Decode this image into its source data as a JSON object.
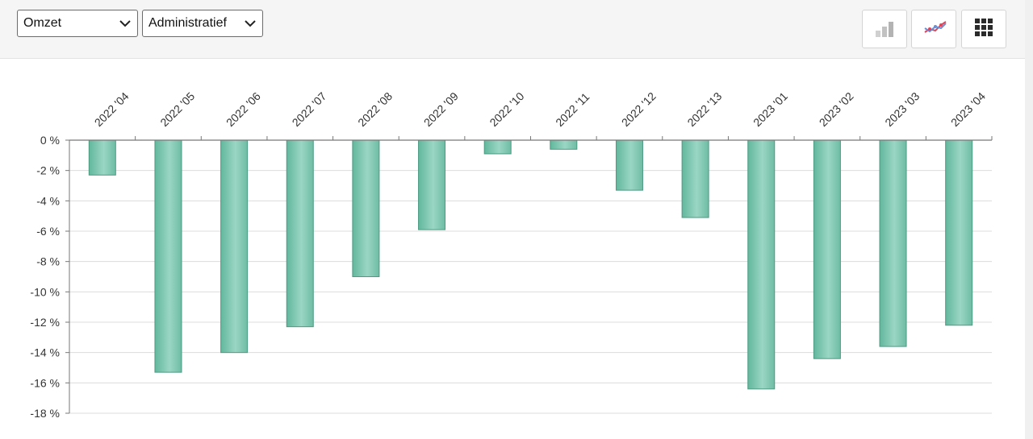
{
  "toolbar": {
    "metric_select": {
      "value": "Omzet"
    },
    "department_select": {
      "value": "Administratief"
    },
    "buttons": [
      {
        "icon": "bar-chart-icon",
        "state": "inactive"
      },
      {
        "icon": "line-chart-icon",
        "state": "inactive"
      },
      {
        "icon": "grid-table-icon",
        "state": "inactive"
      }
    ]
  },
  "chart_data": {
    "type": "bar",
    "categories": [
      "2022 '04",
      "2022 '05",
      "2022 '06",
      "2022 '07",
      "2022 '08",
      "2022 '09",
      "2022 '10",
      "2022 '11",
      "2022 '12",
      "2022 '13",
      "2023 '01",
      "2023 '02",
      "2023 '03",
      "2023 '04"
    ],
    "values": [
      -2.3,
      -15.3,
      -14.0,
      -12.3,
      -9.0,
      -5.9,
      -0.9,
      -0.6,
      -3.3,
      -5.1,
      -16.4,
      -14.4,
      -13.6,
      -12.2
    ],
    "ylim": [
      -18,
      0
    ],
    "yticks": [
      0,
      -2,
      -4,
      -6,
      -8,
      -10,
      -12,
      -14,
      -16,
      -18
    ],
    "ytick_labels": [
      "0 %",
      "-2 %",
      "-4 %",
      "-6 %",
      "-8 %",
      "-10 %",
      "-12 %",
      "-14 %",
      "-16 %",
      "-18 %"
    ],
    "x_axis_position": "top",
    "grid": true,
    "bar_color": "#7cc6b0",
    "bar_edge_color": "#4c9a82"
  }
}
